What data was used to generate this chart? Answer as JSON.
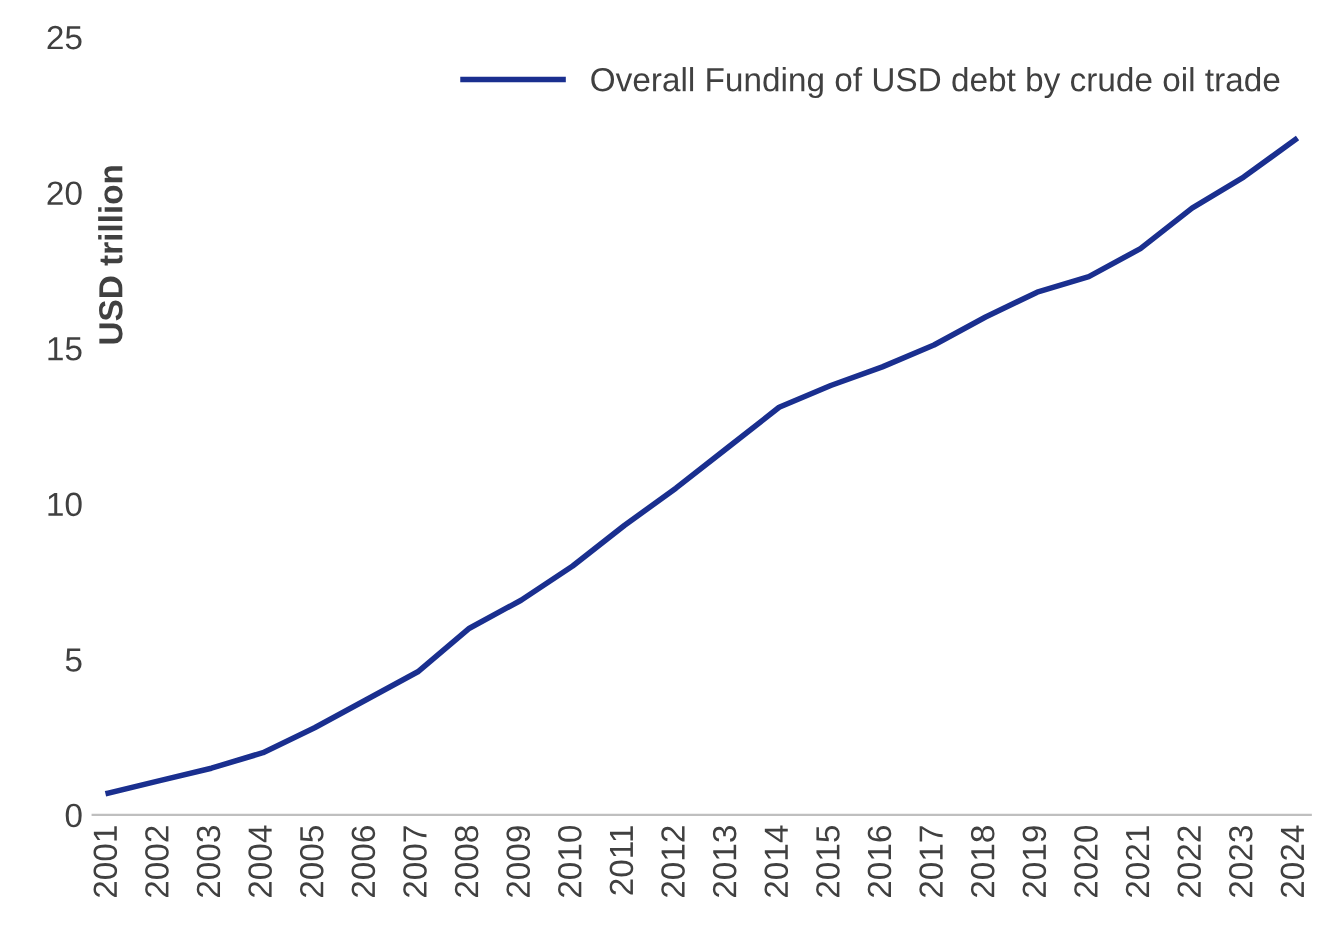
{
  "chart_data": {
    "type": "line",
    "ylabel": "USD trillion",
    "categories": [
      "2001",
      "2002",
      "2003",
      "2004",
      "2005",
      "2006",
      "2007",
      "2008",
      "2009",
      "2010",
      "2011",
      "2012",
      "2013",
      "2014",
      "2015",
      "2016",
      "2017",
      "2018",
      "2019",
      "2020",
      "2021",
      "2022",
      "2023",
      "2024"
    ],
    "series": [
      {
        "name": "Overall Funding of USD debt by crude oil trade",
        "color": "#1a2f8f",
        "values": [
          0.7,
          1.1,
          1.5,
          2.0,
          2.8,
          3.7,
          4.6,
          6.0,
          6.9,
          8.0,
          9.3,
          10.5,
          11.8,
          13.1,
          13.8,
          14.4,
          15.1,
          16.0,
          16.8,
          17.3,
          18.2,
          19.5,
          20.5,
          21.7
        ]
      }
    ],
    "ylim": [
      0,
      25
    ],
    "yticks": [
      0,
      5,
      10,
      15,
      20,
      25
    ],
    "grid": false,
    "legend": "top right",
    "marker": "none",
    "line_style": "solid"
  }
}
